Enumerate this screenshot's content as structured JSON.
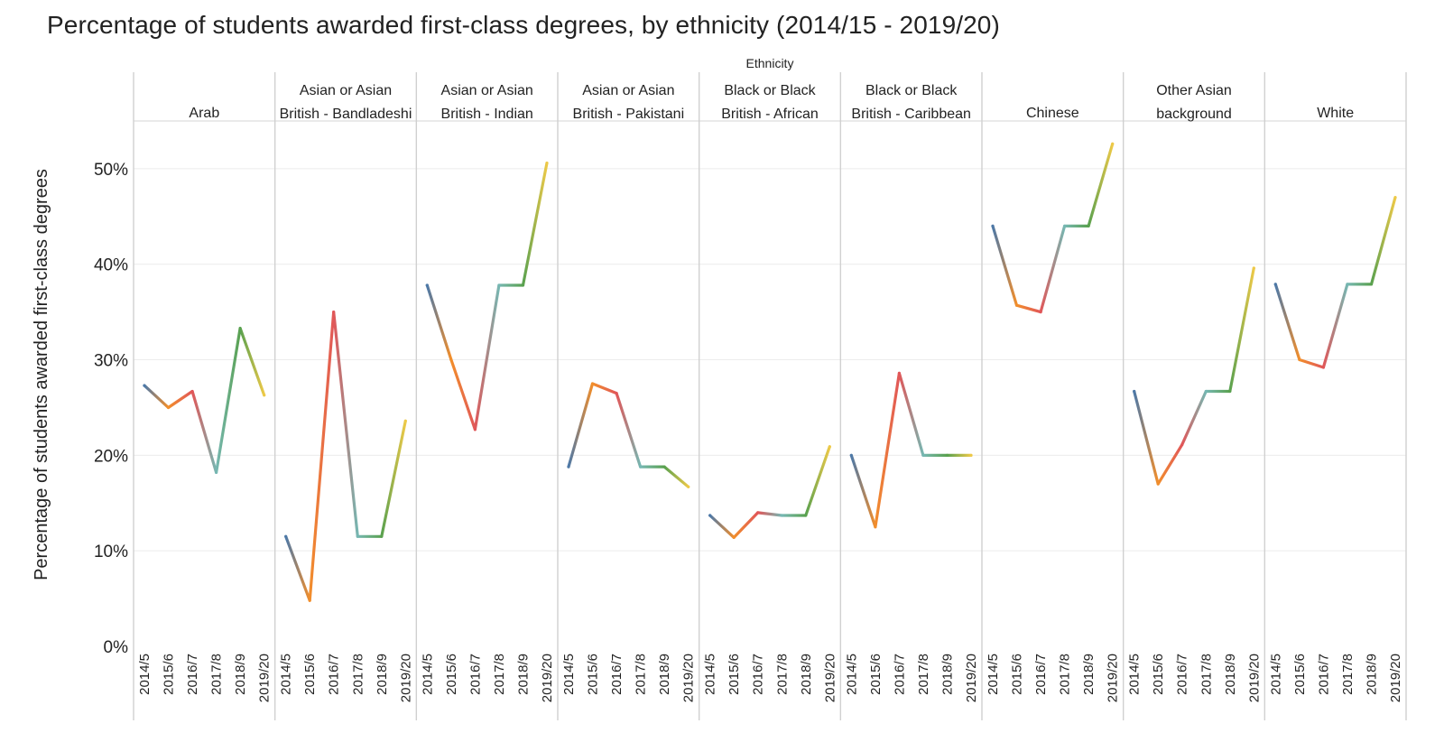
{
  "chart_data": {
    "type": "line",
    "title": "Percentage of students awarded first-class degrees, by ethnicity (2014/15 - 2019/20)",
    "column_header": "Ethnicity",
    "ylabel": "Percentage of students awarded first-class degrees",
    "ylim": [
      0,
      55
    ],
    "y_ticks": [
      0,
      10,
      20,
      30,
      40,
      50
    ],
    "y_tick_labels": [
      "0%",
      "10%",
      "20%",
      "30%",
      "40%",
      "50%"
    ],
    "categories": [
      "2014/5",
      "2015/6",
      "2016/7",
      "2017/8",
      "2018/9",
      "2019/20"
    ],
    "panels": [
      {
        "name": "Arab",
        "label_lines": [
          "Arab"
        ],
        "values": [
          27.3,
          25.0,
          26.7,
          18.2,
          33.3,
          26.3
        ]
      },
      {
        "name": "Asian or Asian British - Bandladeshi",
        "label_lines": [
          "Asian or Asian",
          "British - Bandladeshi"
        ],
        "values": [
          11.5,
          4.8,
          35.0,
          11.5,
          11.5,
          23.6
        ]
      },
      {
        "name": "Asian or Asian British - Indian",
        "label_lines": [
          "Asian or Asian",
          "British - Indian"
        ],
        "values": [
          37.8,
          30.0,
          22.7,
          37.8,
          37.8,
          50.6
        ]
      },
      {
        "name": "Asian or Asian British - Pakistani",
        "label_lines": [
          "Asian or Asian",
          "British - Pakistani"
        ],
        "values": [
          18.8,
          27.5,
          26.5,
          18.8,
          18.8,
          16.7
        ]
      },
      {
        "name": "Black or Black British - African",
        "label_lines": [
          "Black or Black",
          "British - African"
        ],
        "values": [
          13.7,
          11.4,
          14.0,
          13.7,
          13.7,
          20.9
        ]
      },
      {
        "name": "Black or Black British - Caribbean",
        "label_lines": [
          "Black or Black",
          "British - Caribbean"
        ],
        "values": [
          20.0,
          12.5,
          28.6,
          20.0,
          20.0,
          20.0
        ]
      },
      {
        "name": "Chinese",
        "label_lines": [
          "Chinese"
        ],
        "values": [
          44.0,
          35.7,
          35.0,
          44.0,
          44.0,
          52.6
        ]
      },
      {
        "name": "Other Asian background",
        "label_lines": [
          "Other Asian",
          "background"
        ],
        "values": [
          26.7,
          17.0,
          21.1,
          26.7,
          26.7,
          39.6
        ]
      },
      {
        "name": "White",
        "label_lines": [
          "White"
        ],
        "values": [
          37.9,
          30.0,
          29.2,
          37.9,
          37.9,
          47.0
        ]
      }
    ],
    "colors": [
      "#4e79a7",
      "#f28e2b",
      "#e15759",
      "#76b7b2",
      "#59a14f",
      "#edc948"
    ],
    "grid": true
  }
}
